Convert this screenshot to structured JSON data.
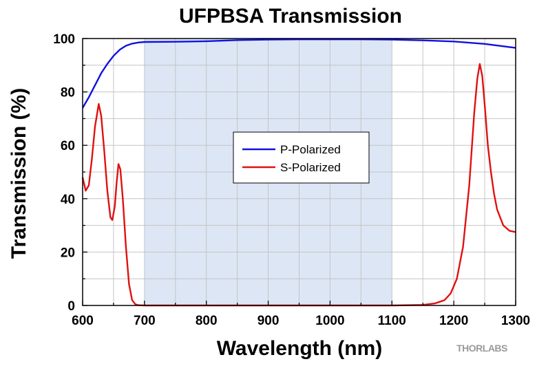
{
  "chart_data": {
    "type": "line",
    "title": "UFPBSA Transmission",
    "xlabel": "Wavelength (nm)",
    "ylabel": "Transmission (%)",
    "xlim": [
      600,
      1300
    ],
    "ylim": [
      0,
      100
    ],
    "x_ticks": [
      600,
      700,
      800,
      900,
      1000,
      1100,
      1200,
      1300
    ],
    "y_ticks": [
      0,
      20,
      40,
      60,
      80,
      100
    ],
    "grid": true,
    "legend_position": "center",
    "shaded_band": {
      "x_start": 700,
      "x_end": 1100,
      "color": "#dde6f5"
    },
    "series": [
      {
        "name": "P-Polarized",
        "color": "#1010e0",
        "points": [
          [
            600,
            74
          ],
          [
            610,
            78
          ],
          [
            620,
            82.5
          ],
          [
            630,
            87
          ],
          [
            640,
            90.5
          ],
          [
            650,
            93.5
          ],
          [
            660,
            95.8
          ],
          [
            670,
            97.3
          ],
          [
            680,
            98.1
          ],
          [
            690,
            98.5
          ],
          [
            700,
            98.7
          ],
          [
            750,
            98.8
          ],
          [
            800,
            99.0
          ],
          [
            850,
            99.4
          ],
          [
            900,
            99.6
          ],
          [
            950,
            99.7
          ],
          [
            1000,
            99.7
          ],
          [
            1050,
            99.7
          ],
          [
            1100,
            99.6
          ],
          [
            1150,
            99.3
          ],
          [
            1200,
            98.9
          ],
          [
            1250,
            98.0
          ],
          [
            1300,
            96.5
          ]
        ]
      },
      {
        "name": "S-Polarized",
        "color": "#e01010",
        "points": [
          [
            600,
            48
          ],
          [
            605,
            43
          ],
          [
            610,
            45
          ],
          [
            615,
            55
          ],
          [
            620,
            67
          ],
          [
            626,
            75.5
          ],
          [
            630,
            71
          ],
          [
            635,
            58
          ],
          [
            640,
            43
          ],
          [
            645,
            33
          ],
          [
            648,
            32
          ],
          [
            652,
            37
          ],
          [
            655,
            46
          ],
          [
            658,
            53
          ],
          [
            661,
            51
          ],
          [
            665,
            40
          ],
          [
            670,
            22
          ],
          [
            675,
            8
          ],
          [
            680,
            2
          ],
          [
            685,
            0.5
          ],
          [
            690,
            0.1
          ],
          [
            700,
            0
          ],
          [
            800,
            0
          ],
          [
            900,
            0
          ],
          [
            1000,
            0
          ],
          [
            1100,
            0
          ],
          [
            1150,
            0.2
          ],
          [
            1170,
            0.8
          ],
          [
            1185,
            2
          ],
          [
            1195,
            4.5
          ],
          [
            1205,
            10
          ],
          [
            1215,
            22
          ],
          [
            1225,
            45
          ],
          [
            1233,
            72
          ],
          [
            1238,
            85
          ],
          [
            1242,
            90.5
          ],
          [
            1246,
            86
          ],
          [
            1250,
            75
          ],
          [
            1255,
            60
          ],
          [
            1260,
            50
          ],
          [
            1265,
            42
          ],
          [
            1270,
            36
          ],
          [
            1280,
            30
          ],
          [
            1290,
            28
          ],
          [
            1300,
            27.5
          ]
        ]
      }
    ],
    "legend": [
      "P-Polarized",
      "S-Polarized"
    ]
  },
  "watermark": {
    "text": "THORLABS"
  }
}
